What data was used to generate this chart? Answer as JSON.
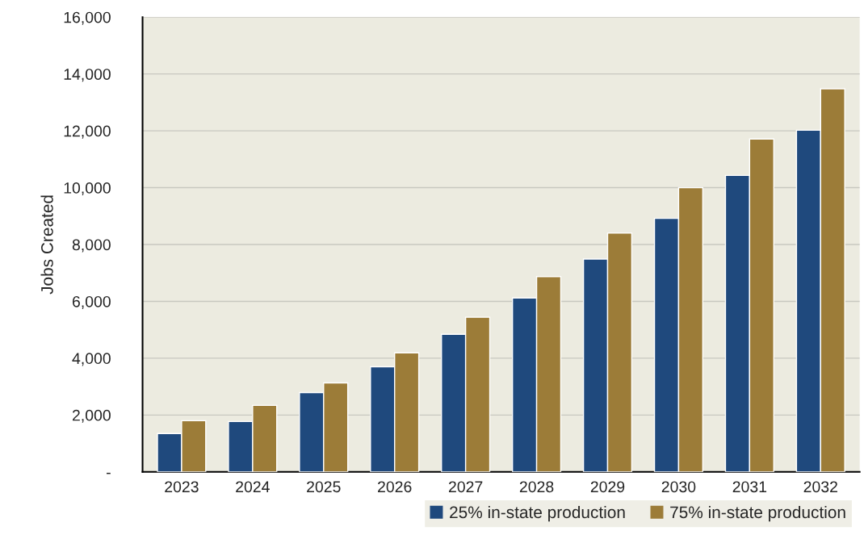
{
  "chart_data": {
    "type": "bar",
    "ylabel": "Jobs Created",
    "categories": [
      "2023",
      "2024",
      "2025",
      "2026",
      "2027",
      "2028",
      "2029",
      "2030",
      "2031",
      "2032"
    ],
    "series": [
      {
        "name": "25% in-state production",
        "color": "#1f497d",
        "values": [
          1350,
          1770,
          2790,
          3700,
          4840,
          6120,
          7490,
          8920,
          10430,
          12020
        ]
      },
      {
        "name": "75% in-state production",
        "color": "#9c7c38",
        "values": [
          1800,
          2340,
          3130,
          4190,
          5440,
          6870,
          8400,
          10000,
          11710,
          13480
        ]
      }
    ],
    "ylim": [
      0,
      16000
    ],
    "yticks": [
      {
        "value": 0,
        "label": "-"
      },
      {
        "value": 2000,
        "label": "2,000"
      },
      {
        "value": 4000,
        "label": "4,000"
      },
      {
        "value": 6000,
        "label": "6,000"
      },
      {
        "value": 8000,
        "label": "8,000"
      },
      {
        "value": 10000,
        "label": "10,000"
      },
      {
        "value": 12000,
        "label": "12,000"
      },
      {
        "value": 14000,
        "label": "14,000"
      },
      {
        "value": 16000,
        "label": "16,000"
      }
    ],
    "grid": "y",
    "legend": "bottom right"
  }
}
